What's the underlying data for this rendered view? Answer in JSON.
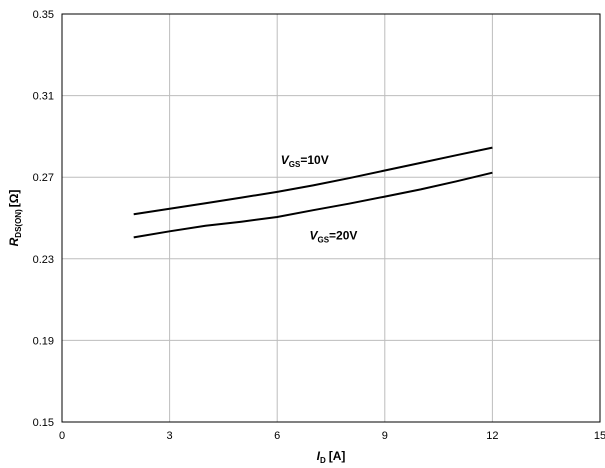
{
  "chart_data": {
    "type": "line",
    "xlabel": {
      "main": "I",
      "sub": "D",
      "unit": "[A]"
    },
    "ylabel": {
      "main": "R",
      "sub": "DS(ON)",
      "unit": "[Ω]"
    },
    "xlim": [
      0,
      15
    ],
    "ylim": [
      0.15,
      0.35
    ],
    "x_ticks": [
      0,
      3,
      6,
      9,
      12,
      15
    ],
    "x_tick_labels": [
      "0",
      "3",
      "6",
      "9",
      "12",
      "15"
    ],
    "y_ticks": [
      0.15,
      0.19,
      0.23,
      0.27,
      0.31,
      0.35
    ],
    "y_tick_labels": [
      "0.15",
      "0.19",
      "0.23",
      "0.27",
      "0.31",
      "0.35"
    ],
    "grid": true,
    "series": [
      {
        "name": {
          "main": "V",
          "sub": "GS",
          "rest": "=10V"
        },
        "color": "#000000",
        "x": [
          2,
          3,
          4,
          5,
          6,
          7,
          8,
          9,
          10,
          11,
          12
        ],
        "y": [
          0.2518,
          0.2545,
          0.2572,
          0.26,
          0.2628,
          0.266,
          0.2695,
          0.2733,
          0.277,
          0.2808,
          0.2845
        ],
        "label_at": [
          6.1,
          0.2765
        ]
      },
      {
        "name": {
          "main": "V",
          "sub": "GS",
          "rest": "=20V"
        },
        "color": "#000000",
        "x": [
          2,
          3,
          4,
          5,
          6,
          7,
          8,
          9,
          10,
          11,
          12
        ],
        "y": [
          0.2405,
          0.2435,
          0.2462,
          0.2482,
          0.2505,
          0.2538,
          0.257,
          0.2605,
          0.264,
          0.268,
          0.2722
        ],
        "label_at": [
          6.9,
          0.2395
        ]
      }
    ]
  }
}
